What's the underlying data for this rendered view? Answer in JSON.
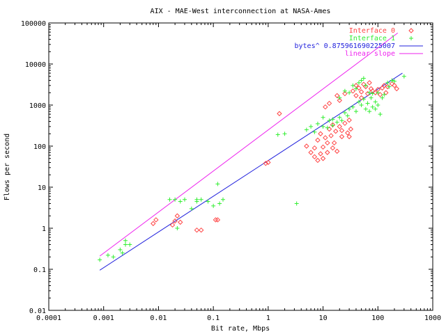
{
  "colors": {
    "background": "#ffffff",
    "axis": "#000000",
    "interface0": "#ff4444",
    "interface1": "#33ee33",
    "fit": "#2222dd",
    "slope": "#ee22ee"
  },
  "chart_data": {
    "type": "scatter",
    "title": "AIX - MAE-West interconnection at NASA-Ames",
    "xlabel": "Bit rate, Mbps",
    "ylabel": "Flows per second",
    "xscale": "log",
    "yscale": "log",
    "xlim": [
      0.0001,
      1000
    ],
    "ylim": [
      0.01,
      100000
    ],
    "x_ticks": [
      "0.0001",
      "0.001",
      "0.01",
      "0.1",
      "1",
      "10",
      "100",
      "1000"
    ],
    "y_ticks": [
      "0.01",
      "0.1",
      "1",
      "10",
      "100",
      "1000",
      "10000",
      "100000"
    ],
    "legend_position": "top-right",
    "grid": false,
    "series": [
      {
        "name": "Interface 0",
        "marker": "diamond",
        "points": [
          [
            0.008,
            1.3
          ],
          [
            0.009,
            1.6
          ],
          [
            0.018,
            1.2
          ],
          [
            0.02,
            1.5
          ],
          [
            0.022,
            2.0
          ],
          [
            0.025,
            1.4
          ],
          [
            0.05,
            0.9
          ],
          [
            0.06,
            0.9
          ],
          [
            0.11,
            1.6
          ],
          [
            0.12,
            1.6
          ],
          [
            0.9,
            38
          ],
          [
            1.0,
            40
          ],
          [
            1.6,
            620
          ],
          [
            5,
            100
          ],
          [
            6,
            70
          ],
          [
            7,
            55
          ],
          [
            7,
            90
          ],
          [
            8,
            45
          ],
          [
            8,
            140
          ],
          [
            9,
            65
          ],
          [
            9,
            200
          ],
          [
            10,
            50
          ],
          [
            10,
            95
          ],
          [
            11,
            160
          ],
          [
            11,
            900
          ],
          [
            12,
            70
          ],
          [
            12,
            120
          ],
          [
            13,
            260
          ],
          [
            13,
            1100
          ],
          [
            14,
            180
          ],
          [
            15,
            90
          ],
          [
            15,
            330
          ],
          [
            16,
            120
          ],
          [
            17,
            230
          ],
          [
            18,
            75
          ],
          [
            18,
            1700
          ],
          [
            20,
            300
          ],
          [
            20,
            1300
          ],
          [
            22,
            170
          ],
          [
            22,
            240
          ],
          [
            25,
            360
          ],
          [
            25,
            1900
          ],
          [
            28,
            210
          ],
          [
            30,
            170
          ],
          [
            30,
            430
          ],
          [
            32,
            260
          ],
          [
            35,
            2200
          ],
          [
            40,
            1700
          ],
          [
            40,
            3000
          ],
          [
            45,
            2600
          ],
          [
            50,
            1500
          ],
          [
            50,
            2100
          ],
          [
            55,
            3200
          ],
          [
            60,
            2800
          ],
          [
            65,
            1900
          ],
          [
            70,
            3500
          ],
          [
            75,
            2500
          ],
          [
            80,
            2200
          ],
          [
            90,
            2000
          ],
          [
            100,
            2400
          ],
          [
            110,
            1800
          ],
          [
            120,
            2600
          ],
          [
            130,
            3000
          ],
          [
            140,
            2000
          ],
          [
            150,
            2800
          ],
          [
            180,
            3300
          ],
          [
            200,
            3000
          ],
          [
            220,
            2500
          ]
        ]
      },
      {
        "name": "Interface 1",
        "marker": "plus",
        "points": [
          [
            0.00085,
            0.17
          ],
          [
            0.0012,
            0.22
          ],
          [
            0.0015,
            0.2
          ],
          [
            0.002,
            0.3
          ],
          [
            0.0022,
            0.25
          ],
          [
            0.0025,
            0.4
          ],
          [
            0.0025,
            0.5
          ],
          [
            0.003,
            0.4
          ],
          [
            0.016,
            5
          ],
          [
            0.02,
            5
          ],
          [
            0.022,
            1.0
          ],
          [
            0.025,
            4.5
          ],
          [
            0.03,
            5
          ],
          [
            0.04,
            3
          ],
          [
            0.05,
            5
          ],
          [
            0.05,
            4.5
          ],
          [
            0.06,
            5
          ],
          [
            0.08,
            4.5
          ],
          [
            0.1,
            3.5
          ],
          [
            0.12,
            12
          ],
          [
            0.13,
            4
          ],
          [
            0.15,
            5
          ],
          [
            1.5,
            190
          ],
          [
            2,
            200
          ],
          [
            3.3,
            4
          ],
          [
            5,
            250
          ],
          [
            6,
            300
          ],
          [
            7,
            220
          ],
          [
            8,
            350
          ],
          [
            10,
            300
          ],
          [
            10,
            500
          ],
          [
            12,
            280
          ],
          [
            13,
            420
          ],
          [
            15,
            320
          ],
          [
            15,
            450
          ],
          [
            18,
            380
          ],
          [
            20,
            500
          ],
          [
            20,
            1500
          ],
          [
            22,
            420
          ],
          [
            25,
            650
          ],
          [
            25,
            2200
          ],
          [
            28,
            550
          ],
          [
            30,
            800
          ],
          [
            30,
            2000
          ],
          [
            35,
            900
          ],
          [
            35,
            3000
          ],
          [
            40,
            700
          ],
          [
            40,
            2500
          ],
          [
            45,
            1200
          ],
          [
            45,
            3500
          ],
          [
            50,
            1000
          ],
          [
            50,
            4000
          ],
          [
            55,
            1400
          ],
          [
            55,
            4500
          ],
          [
            60,
            800
          ],
          [
            60,
            3000
          ],
          [
            65,
            1100
          ],
          [
            70,
            700
          ],
          [
            70,
            2000
          ],
          [
            75,
            1500
          ],
          [
            80,
            900
          ],
          [
            80,
            1900
          ],
          [
            90,
            800
          ],
          [
            90,
            1200
          ],
          [
            100,
            1000
          ],
          [
            100,
            2000
          ],
          [
            110,
            600
          ],
          [
            120,
            1500
          ],
          [
            130,
            1800
          ],
          [
            150,
            3500
          ],
          [
            160,
            2800
          ],
          [
            180,
            4000
          ],
          [
            200,
            3800
          ],
          [
            300,
            5000
          ]
        ]
      }
    ],
    "lines": [
      {
        "name": "bytes^ 0.875961690225007",
        "kind": "fit",
        "exponent": 0.875961690225007,
        "from": [
          0.00085,
          0.095
        ],
        "to": [
          280,
          6000
        ]
      },
      {
        "name": "linear slope",
        "kind": "linear",
        "from": [
          0.00085,
          0.21
        ],
        "to": [
          230,
          57000
        ]
      }
    ]
  }
}
